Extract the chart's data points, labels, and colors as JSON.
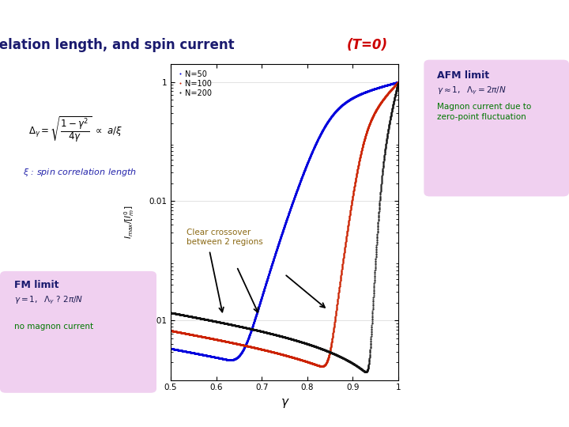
{
  "title_main": "System size, correlation length, and spin current ",
  "title_highlight": "(T=0)",
  "title_color_main": "#1a1a6e",
  "title_color_highlight": "#cc0000",
  "bg_color": "#ffffff",
  "gamma_min": 0.5,
  "gamma_max": 1.0,
  "ymin": 5e-06,
  "ymax": 2.0,
  "N_values": [
    50,
    100,
    200
  ],
  "N_colors": [
    "#0000dd",
    "#cc2200",
    "#111111"
  ],
  "legend_labels": [
    "N=50",
    "N=100",
    "N=200"
  ],
  "xlabel": "γ",
  "afm_box_color": "#f0d0f0",
  "fm_box_color": "#f0d0f0",
  "afm_title": "AFM limit",
  "afm_magnon": "Magnon current due to",
  "afm_magnon2": "zero-point fluctuation",
  "fm_title": "FM limit",
  "fm_no_magnon": "no magnon current",
  "crossover_text": "Clear crossover\nbetween 2 regions",
  "crossover_color": "#8b6914",
  "header_left_color": "#2e3080",
  "header_right_color": "#c8cce8"
}
